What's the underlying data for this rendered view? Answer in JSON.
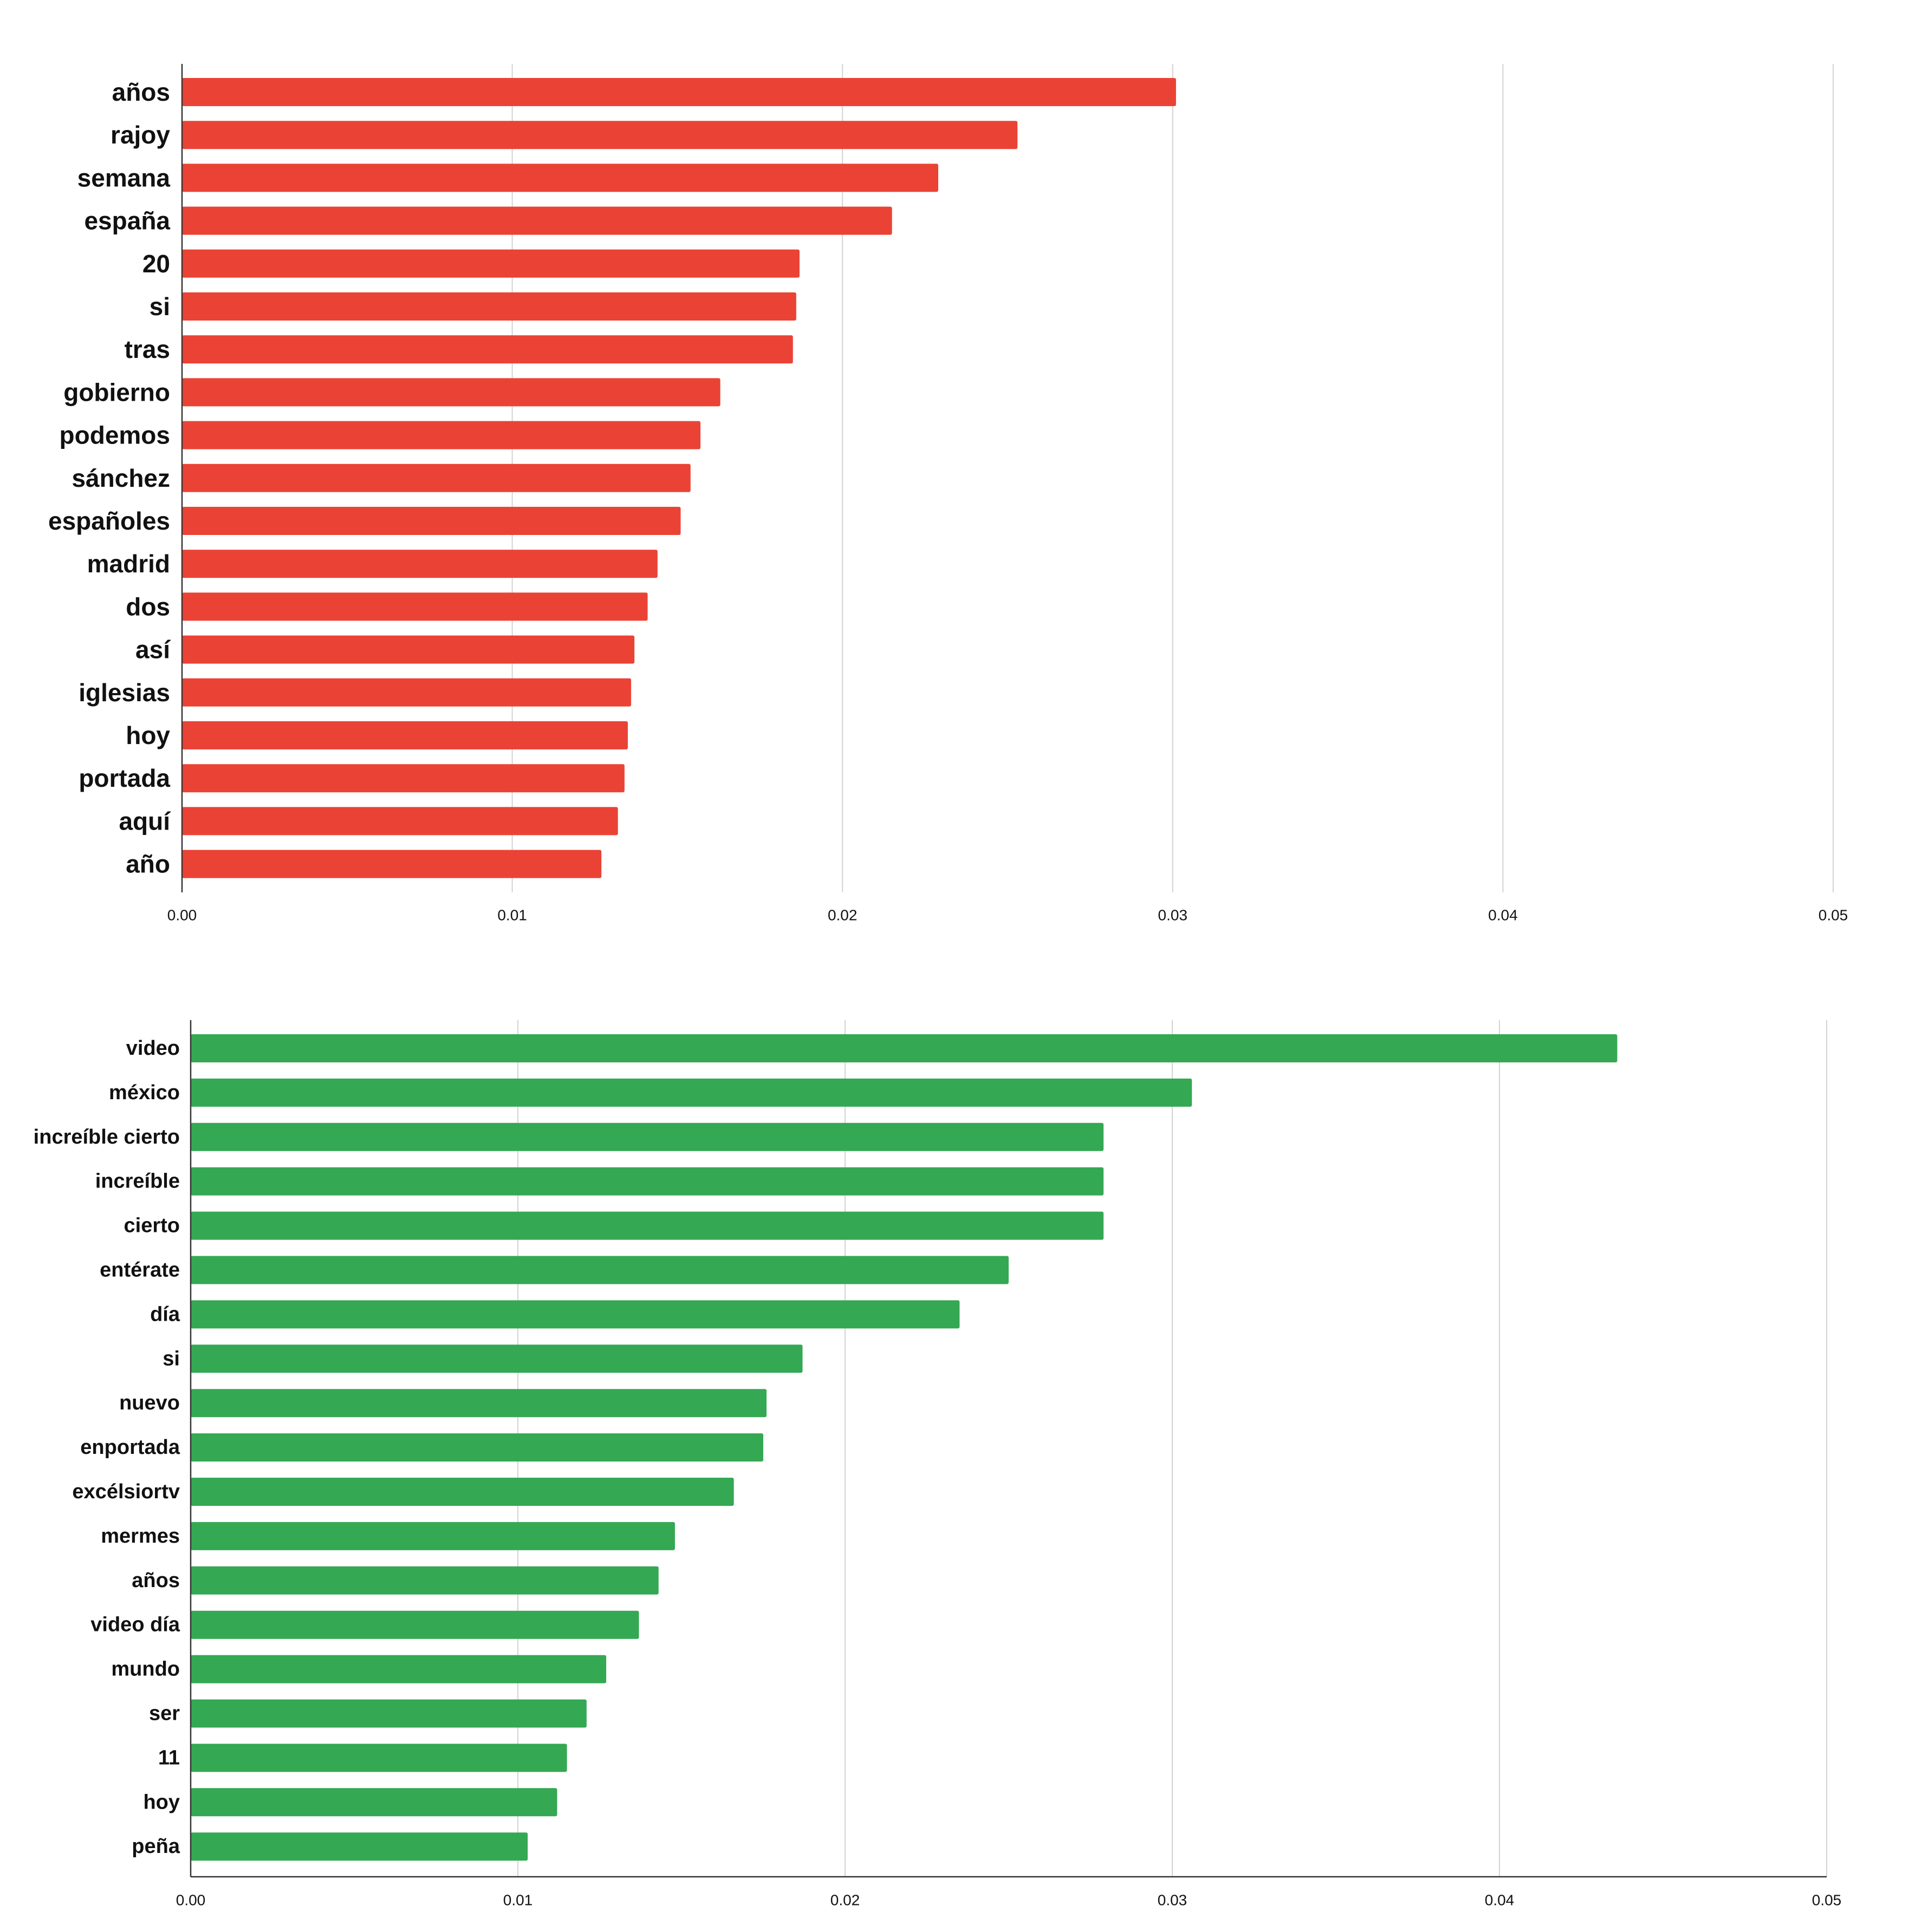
{
  "chart_data": [
    {
      "type": "bar",
      "orientation": "horizontal",
      "color": "#EA4335",
      "categories": [
        "años",
        "rajoy",
        "semana",
        "españa",
        "20",
        "si",
        "tras",
        "gobierno",
        "podemos",
        "sánchez",
        "españoles",
        "madrid",
        "dos",
        "así",
        "iglesias",
        "hoy",
        "portada",
        "aquí",
        "año"
      ],
      "values": [
        0.0301,
        0.0253,
        0.0229,
        0.0215,
        0.0187,
        0.0186,
        0.0185,
        0.0163,
        0.0157,
        0.0154,
        0.0151,
        0.0144,
        0.0141,
        0.0137,
        0.0136,
        0.0135,
        0.0134,
        0.0132,
        0.0127
      ],
      "xlim": [
        0,
        0.05
      ],
      "x_ticks": [
        "0.00",
        "0.01",
        "0.02",
        "0.03",
        "0.04",
        "0.05"
      ],
      "grid": true
    },
    {
      "type": "bar",
      "orientation": "horizontal",
      "color": "#34A853",
      "categories": [
        "video",
        "méxico",
        "increíble cierto",
        "increíble",
        "cierto",
        "entérate",
        "día",
        "si",
        "nuevo",
        "enportada",
        "excélsiortv",
        "mermes",
        "años",
        "video día",
        "mundo",
        "ser",
        "11",
        "hoy",
        "peña"
      ],
      "values": [
        0.0436,
        0.0306,
        0.0279,
        0.0279,
        0.0279,
        0.025,
        0.0235,
        0.0187,
        0.0176,
        0.0175,
        0.0166,
        0.0148,
        0.0143,
        0.0137,
        0.0127,
        0.0121,
        0.0115,
        0.0112,
        0.0103
      ],
      "xlim": [
        0,
        0.05
      ],
      "x_ticks": [
        "0.00",
        "0.01",
        "0.02",
        "0.03",
        "0.04",
        "0.05"
      ],
      "grid": true
    }
  ]
}
